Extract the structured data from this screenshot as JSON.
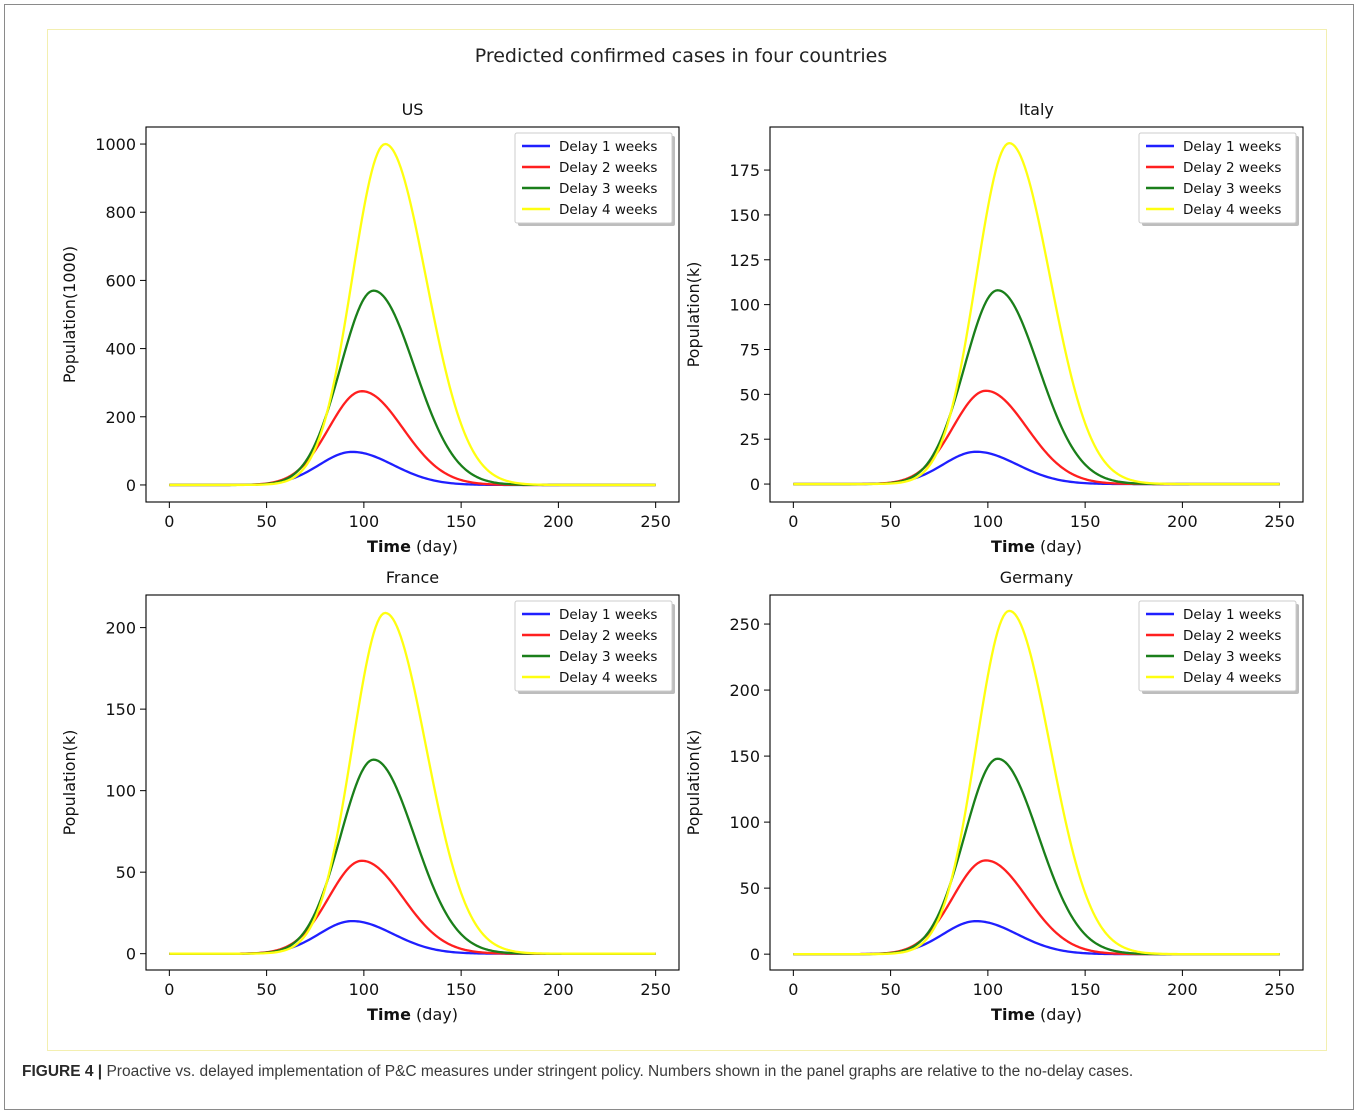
{
  "figure": {
    "suptitle": "Predicted confirmed cases in four countries",
    "caption_label": "FIGURE 4 |",
    "caption_text": " Proactive vs. delayed implementation of P&C measures under stringent policy. Numbers shown in the panel graphs are relative to the no-delay cases."
  },
  "colors": {
    "Delay 1 weeks": "#1f1fff",
    "Delay 2 weeks": "#ff1f1f",
    "Delay 3 weeks": "#1a7f1a",
    "Delay 4 weeks": "#ffff10"
  },
  "chart_data": [
    {
      "type": "line",
      "title": "US",
      "xlabel_bold": "Time",
      "xlabel_unit": " (day)",
      "ylabel": "Population(1000)",
      "xlim": [
        -12,
        262
      ],
      "ylim": [
        -50,
        1050
      ],
      "xticks": [
        0,
        50,
        100,
        150,
        200,
        250
      ],
      "yticks": [
        0,
        200,
        400,
        600,
        800,
        1000
      ],
      "grid": false,
      "legend": "top-right",
      "series": [
        {
          "name": "Delay 1 weeks",
          "peak": 97,
          "peak_day": 94
        },
        {
          "name": "Delay 2 weeks",
          "peak": 275,
          "peak_day": 99
        },
        {
          "name": "Delay 3 weeks",
          "peak": 570,
          "peak_day": 105
        },
        {
          "name": "Delay 4 weeks",
          "peak": 1000,
          "peak_day": 111
        }
      ]
    },
    {
      "type": "line",
      "title": "Italy",
      "xlabel_bold": "Time",
      "xlabel_unit": " (day)",
      "ylabel": "Population(k)",
      "xlim": [
        -12,
        262
      ],
      "ylim": [
        -10,
        199
      ],
      "xticks": [
        0,
        50,
        100,
        150,
        200,
        250
      ],
      "yticks": [
        0,
        25,
        50,
        75,
        100,
        125,
        150,
        175
      ],
      "grid": false,
      "legend": "top-right",
      "series": [
        {
          "name": "Delay 1 weeks",
          "peak": 18,
          "peak_day": 94
        },
        {
          "name": "Delay 2 weeks",
          "peak": 52,
          "peak_day": 99
        },
        {
          "name": "Delay 3 weeks",
          "peak": 108,
          "peak_day": 105
        },
        {
          "name": "Delay 4 weeks",
          "peak": 190,
          "peak_day": 111
        }
      ]
    },
    {
      "type": "line",
      "title": "France",
      "xlabel_bold": "Time",
      "xlabel_unit": " (day)",
      "ylabel": "Population(k)",
      "xlim": [
        -12,
        262
      ],
      "ylim": [
        -10,
        220
      ],
      "xticks": [
        0,
        50,
        100,
        150,
        200,
        250
      ],
      "yticks": [
        0,
        50,
        100,
        150,
        200
      ],
      "grid": false,
      "legend": "top-right",
      "series": [
        {
          "name": "Delay 1 weeks",
          "peak": 20,
          "peak_day": 94
        },
        {
          "name": "Delay 2 weeks",
          "peak": 57,
          "peak_day": 99
        },
        {
          "name": "Delay 3 weeks",
          "peak": 119,
          "peak_day": 105
        },
        {
          "name": "Delay 4 weeks",
          "peak": 209,
          "peak_day": 111
        }
      ]
    },
    {
      "type": "line",
      "title": "Germany",
      "xlabel_bold": "Time",
      "xlabel_unit": " (day)",
      "ylabel": "Population(k)",
      "xlim": [
        -12,
        262
      ],
      "ylim": [
        -12,
        272
      ],
      "xticks": [
        0,
        50,
        100,
        150,
        200,
        250
      ],
      "yticks": [
        0,
        50,
        100,
        150,
        200,
        250
      ],
      "grid": false,
      "legend": "top-right",
      "series": [
        {
          "name": "Delay 1 weeks",
          "peak": 25,
          "peak_day": 94
        },
        {
          "name": "Delay 2 weeks",
          "peak": 71,
          "peak_day": 99
        },
        {
          "name": "Delay 3 weeks",
          "peak": 148,
          "peak_day": 105
        },
        {
          "name": "Delay 4 weeks",
          "peak": 260,
          "peak_day": 111
        }
      ]
    }
  ]
}
